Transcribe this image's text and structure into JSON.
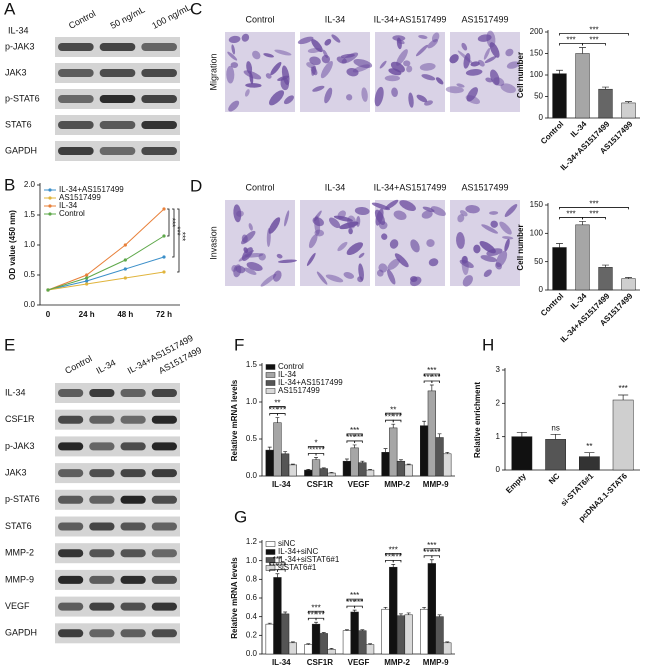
{
  "blots": [
    {
      "panel": "A",
      "title": "IL-34",
      "lanes": [
        "Control",
        "50 ng/mL",
        "100 ng/mL"
      ],
      "rows": [
        "p-JAK3",
        "JAK3",
        "p-STAT6",
        "STAT6",
        "GAPDH"
      ]
    },
    {
      "panel": "E",
      "lanes": [
        "Control",
        "IL-34",
        "IL-34+AS1517499",
        "AS1517499"
      ],
      "rows": [
        "IL-34",
        "CSF1R",
        "p-JAK3",
        "JAK3",
        "p-STAT6",
        "STAT6",
        "MMP-2",
        "MMP-9",
        "VEGF",
        "GAPDH"
      ]
    }
  ],
  "micrographs": [
    {
      "panel": "C",
      "row_label": "Migration",
      "columns": [
        "Control",
        "IL-34",
        "IL-34+AS1517499",
        "AS1517499"
      ]
    },
    {
      "panel": "D",
      "row_label": "Invasion",
      "columns": [
        "Control",
        "IL-34",
        "IL-34+AS1517499",
        "AS1517499"
      ]
    }
  ],
  "chart_data": [
    {
      "type": "line",
      "panel": "B",
      "ylabel": "OD value (450 nm)",
      "categories": [
        "0",
        "24 h",
        "48 h",
        "72 h"
      ],
      "ylim": [
        0,
        2
      ],
      "yticks": [
        {
          "value": 0,
          "label": "0.0"
        },
        0.5,
        {
          "value": 1,
          "label": "1.0"
        },
        1.5,
        {
          "value": 2,
          "label": "2.0"
        }
      ],
      "legend": "top-left",
      "series": [
        {
          "name": "IL-34+AS1517499",
          "color": "#3b8fc9",
          "values": [
            0.25,
            0.4,
            0.6,
            0.8
          ]
        },
        {
          "name": "AS1517499",
          "color": "#e0b43c",
          "values": [
            0.25,
            0.35,
            0.45,
            0.55
          ]
        },
        {
          "name": "IL-34",
          "color": "#e8803a",
          "values": [
            0.25,
            0.5,
            1.0,
            1.6
          ]
        },
        {
          "name": "Control",
          "color": "#5ea84a",
          "values": [
            0.25,
            0.45,
            0.75,
            1.15
          ]
        }
      ],
      "annotations": [
        {
          "text": "***",
          "between": [
            2,
            3
          ]
        },
        {
          "text": "***",
          "between": [
            2,
            0
          ]
        },
        {
          "text": "***",
          "between": [
            2,
            1
          ]
        }
      ]
    },
    {
      "type": "bar",
      "ylabel": "Cell number",
      "categories": [
        "Control",
        "IL-34",
        "IL-34+AS1517499",
        "AS1517499"
      ],
      "values": [
        103,
        150,
        67,
        35
      ],
      "errors": [
        8,
        14,
        5,
        3
      ],
      "colors": [
        "#111111",
        "#a6a6a6",
        "#666666",
        "#cfcfcf"
      ],
      "ylim": [
        0,
        200
      ],
      "yticks": [
        0,
        50,
        100,
        150,
        200
      ],
      "annotations": [
        {
          "text": "***",
          "between": [
            0,
            1
          ]
        },
        {
          "text": "***",
          "between": [
            1,
            2
          ]
        },
        {
          "text": "***",
          "between": [
            0,
            3
          ]
        }
      ]
    },
    {
      "type": "bar",
      "ylabel": "Cell number",
      "categories": [
        "Control",
        "IL-34",
        "IL-34+AS1517499",
        "AS1517499"
      ],
      "values": [
        75,
        115,
        40,
        20
      ],
      "errors": [
        7,
        6,
        4,
        2
      ],
      "colors": [
        "#111111",
        "#a6a6a6",
        "#666666",
        "#cfcfcf"
      ],
      "ylim": [
        0,
        150
      ],
      "yticks": [
        0,
        50,
        100,
        150
      ],
      "annotations": [
        {
          "text": "***",
          "between": [
            0,
            1
          ]
        },
        {
          "text": "***",
          "between": [
            1,
            2
          ]
        },
        {
          "text": "***",
          "between": [
            0,
            3
          ]
        }
      ]
    },
    {
      "type": "bar",
      "panel": "F",
      "ylabel": "Relative mRNA levels",
      "categories": [
        "IL-34",
        "CSF1R",
        "VEGF",
        "MMP-2",
        "MMP-9"
      ],
      "ylim": [
        0,
        1.5
      ],
      "yticks": [
        {
          "value": 0,
          "label": "0.0"
        },
        0.5,
        {
          "value": 1,
          "label": "1.0"
        },
        1.5
      ],
      "legend": "top-left",
      "series": [
        {
          "name": "Control",
          "color": "#111111",
          "values": [
            0.35,
            0.08,
            0.2,
            0.32,
            0.68
          ],
          "errors": [
            0.04,
            0.01,
            0.03,
            0.05,
            0.06
          ]
        },
        {
          "name": "IL-34",
          "color": "#a6a6a6",
          "values": [
            0.72,
            0.22,
            0.38,
            0.65,
            1.15
          ],
          "errors": [
            0.07,
            0.03,
            0.04,
            0.05,
            0.08
          ]
        },
        {
          "name": "IL-34+AS1517499",
          "color": "#555555",
          "values": [
            0.3,
            0.1,
            0.18,
            0.2,
            0.52
          ],
          "errors": [
            0.03,
            0.01,
            0.02,
            0.02,
            0.05
          ]
        },
        {
          "name": "AS1517499",
          "color": "#d9d9d9",
          "values": [
            0.15,
            0.04,
            0.08,
            0.15,
            0.3
          ],
          "errors": [
            0.01,
            0.01,
            0.01,
            0.01,
            0.02
          ]
        }
      ],
      "annotations": [
        {
          "text": "***",
          "category": 0,
          "between": [
            0,
            1
          ]
        },
        {
          "text": "***",
          "category": 0,
          "between": [
            1,
            2
          ]
        },
        {
          "text": "**",
          "category": 0,
          "between": [
            0,
            2
          ]
        },
        {
          "text": "**",
          "category": 1,
          "between": [
            0,
            1
          ]
        },
        {
          "text": "***",
          "category": 1,
          "between": [
            1,
            2
          ]
        },
        {
          "text": "*",
          "category": 1,
          "between": [
            0,
            2
          ]
        },
        {
          "text": "***",
          "category": 2,
          "between": [
            0,
            1
          ]
        },
        {
          "text": "***",
          "category": 2,
          "between": [
            1,
            2
          ]
        },
        {
          "text": "***",
          "category": 2,
          "between": [
            0,
            2
          ]
        },
        {
          "text": "***",
          "category": 3,
          "between": [
            0,
            1
          ]
        },
        {
          "text": "***",
          "category": 3,
          "between": [
            1,
            2
          ]
        },
        {
          "text": "**",
          "category": 3,
          "between": [
            0,
            2
          ]
        },
        {
          "text": "***",
          "category": 4,
          "between": [
            0,
            1
          ]
        },
        {
          "text": "***",
          "category": 4,
          "between": [
            1,
            2
          ]
        },
        {
          "text": "***",
          "category": 4,
          "between": [
            0,
            2
          ]
        }
      ]
    },
    {
      "type": "bar",
      "panel": "G",
      "ylabel": "Relative mRNA levels",
      "categories": [
        "IL-34",
        "CSF1R",
        "VEGF",
        "MMP-2",
        "MMP-9"
      ],
      "ylim": [
        0,
        1.2
      ],
      "yticks": [
        {
          "value": 0,
          "label": "0.0"
        },
        0.2,
        0.4,
        0.6,
        0.8,
        {
          "value": 1,
          "label": "1.0"
        },
        1.2
      ],
      "legend": "top-left",
      "series": [
        {
          "name": "siNC",
          "color": "#ffffff",
          "values": [
            0.32,
            0.1,
            0.25,
            0.48,
            0.48
          ],
          "errors": [
            0.01,
            0.01,
            0.01,
            0.02,
            0.02
          ]
        },
        {
          "name": "IL-34+siNC",
          "color": "#111111",
          "values": [
            0.82,
            0.32,
            0.45,
            0.93,
            0.97
          ],
          "errors": [
            0.04,
            0.02,
            0.02,
            0.03,
            0.04
          ]
        },
        {
          "name": "IL-34+siSTAT6#1",
          "color": "#555555",
          "values": [
            0.43,
            0.22,
            0.25,
            0.41,
            0.4
          ],
          "errors": [
            0.02,
            0.01,
            0.01,
            0.02,
            0.02
          ]
        },
        {
          "name": "siSTAT6#1",
          "color": "#d9d9d9",
          "values": [
            0.12,
            0.05,
            0.1,
            0.42,
            0.12
          ],
          "errors": [
            0.01,
            0.01,
            0.01,
            0.02,
            0.01
          ]
        }
      ],
      "annotations": [
        {
          "text": "***",
          "category": 0,
          "between": [
            0,
            1
          ]
        },
        {
          "text": "***",
          "category": 0,
          "between": [
            1,
            2
          ]
        },
        {
          "text": "***",
          "category": 0,
          "between": [
            0,
            2
          ]
        },
        {
          "text": "***",
          "category": 1,
          "between": [
            0,
            1
          ]
        },
        {
          "text": "***",
          "category": 1,
          "between": [
            1,
            2
          ]
        },
        {
          "text": "***",
          "category": 1,
          "between": [
            0,
            2
          ]
        },
        {
          "text": "***",
          "category": 2,
          "between": [
            0,
            1
          ]
        },
        {
          "text": "***",
          "category": 2,
          "between": [
            1,
            2
          ]
        },
        {
          "text": "***",
          "category": 2,
          "between": [
            0,
            2
          ]
        },
        {
          "text": "***",
          "category": 3,
          "between": [
            0,
            1
          ]
        },
        {
          "text": "***",
          "category": 3,
          "between": [
            1,
            2
          ]
        },
        {
          "text": "***",
          "category": 3,
          "between": [
            0,
            2
          ]
        },
        {
          "text": "***",
          "category": 4,
          "between": [
            0,
            1
          ]
        },
        {
          "text": "***",
          "category": 4,
          "between": [
            1,
            2
          ]
        },
        {
          "text": "***",
          "category": 4,
          "between": [
            0,
            2
          ]
        }
      ]
    },
    {
      "type": "bar",
      "panel": "H",
      "ylabel": "Relative enrichment",
      "categories": [
        "Empty",
        "NC",
        "si-STAT6#1",
        "pcDNA3.1-STAT6"
      ],
      "values": [
        1.0,
        0.92,
        0.4,
        2.1
      ],
      "errors": [
        0.13,
        0.15,
        0.12,
        0.15
      ],
      "colors": [
        "#111111",
        "#555555",
        "#333333",
        "#cfcfcf"
      ],
      "ylim": [
        0,
        3
      ],
      "yticks": [
        0,
        1,
        2,
        3
      ],
      "annotations": [
        {
          "text": "ns",
          "category": 1
        },
        {
          "text": "**",
          "category": 2
        },
        {
          "text": "***",
          "category": 3
        }
      ]
    }
  ]
}
